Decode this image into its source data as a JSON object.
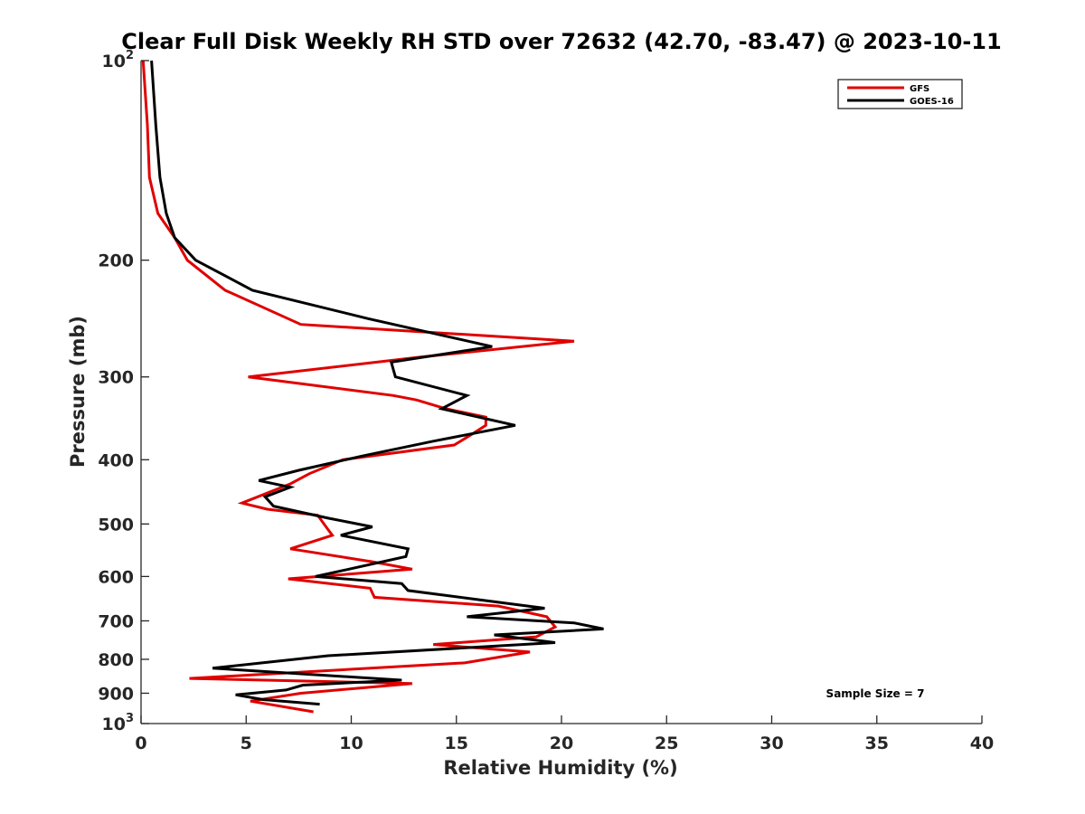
{
  "chart_data": {
    "type": "line",
    "title": "Clear Full Disk Weekly RH STD over 72632 (42.70, -83.47) @ 2023-10-11",
    "xlabel": "Relative Humidity (%)",
    "ylabel": "Pressure (mb)",
    "xlim": [
      0,
      40
    ],
    "ylim": [
      100,
      1000
    ],
    "y_scale": "log",
    "y_reversed": true,
    "grid": false,
    "legend_position": "top-right",
    "x_ticks": [
      "0",
      "5",
      "10",
      "15",
      "20",
      "25",
      "30",
      "35",
      "40"
    ],
    "y_ticks": [
      {
        "value": 100,
        "base": "10",
        "exp": "2"
      },
      {
        "value": 200,
        "label": "200"
      },
      {
        "value": 300,
        "label": "300"
      },
      {
        "value": 400,
        "label": "400"
      },
      {
        "value": 500,
        "label": "500"
      },
      {
        "value": 600,
        "label": "600"
      },
      {
        "value": 700,
        "label": "700"
      },
      {
        "value": 800,
        "label": "800"
      },
      {
        "value": 900,
        "label": "900"
      },
      {
        "value": 1000,
        "base": "10",
        "exp": "3"
      }
    ],
    "series": [
      {
        "name": "GFS",
        "color": "#e00000",
        "points": [
          [
            0.1,
            100
          ],
          [
            0.3,
            125
          ],
          [
            0.4,
            150
          ],
          [
            0.8,
            170
          ],
          [
            1.6,
            185
          ],
          [
            2.2,
            200
          ],
          [
            4,
            222
          ],
          [
            7.6,
            250
          ],
          [
            20.6,
            265
          ],
          [
            13.3,
            280
          ],
          [
            5.1,
            300
          ],
          [
            12,
            320
          ],
          [
            13.1,
            325
          ],
          [
            14.5,
            335
          ],
          [
            16.4,
            345
          ],
          [
            16.4,
            355
          ],
          [
            15.8,
            365
          ],
          [
            14.9,
            380
          ],
          [
            9.6,
            400
          ],
          [
            8,
            420
          ],
          [
            7.1,
            435
          ],
          [
            4.8,
            465
          ],
          [
            6,
            475
          ],
          [
            8.4,
            485
          ],
          [
            8.9,
            510
          ],
          [
            9.1,
            520
          ],
          [
            7.1,
            545
          ],
          [
            11,
            570
          ],
          [
            12.9,
            585
          ],
          [
            7,
            605
          ],
          [
            10.9,
            625
          ],
          [
            11.1,
            645
          ],
          [
            17,
            665
          ],
          [
            19.3,
            690
          ],
          [
            19.7,
            715
          ],
          [
            18.8,
            740
          ],
          [
            13.9,
            760
          ],
          [
            18.5,
            780
          ],
          [
            15.4,
            810
          ],
          [
            2.3,
            855
          ],
          [
            12.9,
            870
          ],
          [
            7.6,
            900
          ],
          [
            5.2,
            925
          ],
          [
            8.2,
            960
          ]
        ]
      },
      {
        "name": "GOES-16",
        "color": "#000000",
        "points": [
          [
            0.5,
            100
          ],
          [
            0.7,
            125
          ],
          [
            0.9,
            150
          ],
          [
            1.2,
            170
          ],
          [
            1.6,
            185
          ],
          [
            2.6,
            200
          ],
          [
            5.3,
            222
          ],
          [
            10.8,
            245
          ],
          [
            16.7,
            270
          ],
          [
            11.9,
            285
          ],
          [
            12.1,
            300
          ],
          [
            15.5,
            320
          ],
          [
            14.3,
            335
          ],
          [
            17.8,
            355
          ],
          [
            13.9,
            375
          ],
          [
            10.5,
            395
          ],
          [
            7.5,
            415
          ],
          [
            5.6,
            430
          ],
          [
            7.1,
            440
          ],
          [
            5.9,
            455
          ],
          [
            6.3,
            470
          ],
          [
            8.9,
            490
          ],
          [
            11,
            505
          ],
          [
            9.5,
            520
          ],
          [
            12.7,
            545
          ],
          [
            12.6,
            560
          ],
          [
            8.3,
            600
          ],
          [
            12.4,
            615
          ],
          [
            12.7,
            630
          ],
          [
            16,
            650
          ],
          [
            19.2,
            670
          ],
          [
            15.5,
            690
          ],
          [
            20.6,
            705
          ],
          [
            22,
            720
          ],
          [
            16.8,
            735
          ],
          [
            19.7,
            755
          ],
          [
            8.9,
            790
          ],
          [
            3.4,
            825
          ],
          [
            12.4,
            860
          ],
          [
            7.7,
            875
          ],
          [
            6.9,
            890
          ],
          [
            4.5,
            905
          ],
          [
            5.8,
            920
          ],
          [
            8.5,
            935
          ]
        ]
      }
    ],
    "annotations": [
      "Sample Size = 7"
    ]
  }
}
